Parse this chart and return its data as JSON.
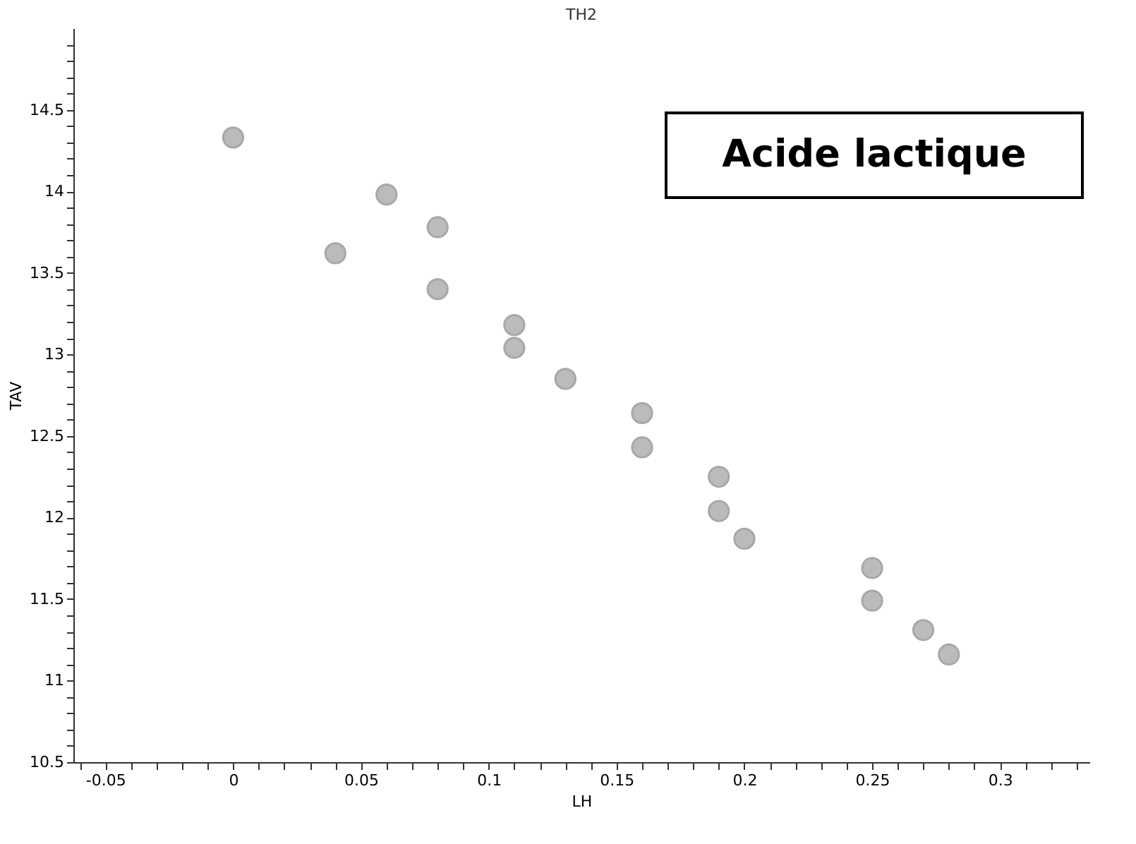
{
  "chart_data": {
    "type": "scatter",
    "title": "TH2",
    "xlabel": "LH",
    "ylabel": "TAV",
    "annotations": [
      "Acide lactique"
    ],
    "x": [
      0,
      0.04,
      0.06,
      0.08,
      0.08,
      0.11,
      0.11,
      0.13,
      0.16,
      0.16,
      0.19,
      0.19,
      0.2,
      0.25,
      0.25,
      0.27,
      0.28
    ],
    "series": [
      {
        "color": "#bbbbbb",
        "values": [
          14.33,
          13.62,
          13.98,
          13.78,
          13.4,
          13.18,
          13.04,
          12.85,
          12.64,
          12.43,
          12.25,
          12.04,
          11.87,
          11.69,
          11.49,
          11.31,
          11.16
        ]
      }
    ],
    "marker": "circle",
    "grid": false,
    "legend": false,
    "xlim": [
      -0.0625,
      0.335
    ],
    "ylim": [
      10.5,
      15
    ],
    "xticks": [
      {
        "value": -0.06,
        "label": null
      },
      -0.05,
      {
        "value": -0.04,
        "label": null
      },
      {
        "value": -0.03,
        "label": null
      },
      {
        "value": -0.02,
        "label": null
      },
      {
        "value": -0.01,
        "label": null
      },
      0,
      {
        "value": 0.01,
        "label": null
      },
      {
        "value": 0.02,
        "label": null
      },
      {
        "value": 0.03,
        "label": null
      },
      {
        "value": 0.04,
        "label": null
      },
      0.05,
      {
        "value": 0.06,
        "label": null
      },
      {
        "value": 0.07,
        "label": null
      },
      {
        "value": 0.08,
        "label": null
      },
      {
        "value": 0.09,
        "label": null
      },
      0.1,
      {
        "value": 0.11,
        "label": null
      },
      {
        "value": 0.12,
        "label": null
      },
      {
        "value": 0.13,
        "label": null
      },
      {
        "value": 0.14,
        "label": null
      },
      0.15,
      {
        "value": 0.16,
        "label": null
      },
      {
        "value": 0.17,
        "label": null
      },
      {
        "value": 0.18,
        "label": null
      },
      {
        "value": 0.19,
        "label": null
      },
      0.2,
      {
        "value": 0.21,
        "label": null
      },
      {
        "value": 0.22,
        "label": null
      },
      {
        "value": 0.23,
        "label": null
      },
      {
        "value": 0.24,
        "label": null
      },
      0.25,
      {
        "value": 0.26,
        "label": null
      },
      {
        "value": 0.27,
        "label": null
      },
      {
        "value": 0.28,
        "label": null
      },
      {
        "value": 0.29,
        "label": null
      },
      0.3,
      {
        "value": 0.31,
        "label": null
      },
      {
        "value": 0.32,
        "label": null
      },
      {
        "value": 0.33,
        "label": null
      }
    ],
    "yticks": [
      10.5,
      {
        "value": 10.6,
        "label": null
      },
      {
        "value": 10.7,
        "label": null
      },
      {
        "value": 10.8,
        "label": null
      },
      {
        "value": 10.9,
        "label": null
      },
      11,
      {
        "value": 11.1,
        "label": null
      },
      {
        "value": 11.2,
        "label": null
      },
      {
        "value": 11.3,
        "label": null
      },
      {
        "value": 11.4,
        "label": null
      },
      11.5,
      {
        "value": 11.6,
        "label": null
      },
      {
        "value": 11.7,
        "label": null
      },
      {
        "value": 11.8,
        "label": null
      },
      {
        "value": 11.9,
        "label": null
      },
      12,
      {
        "value": 12.1,
        "label": null
      },
      {
        "value": 12.2,
        "label": null
      },
      {
        "value": 12.3,
        "label": null
      },
      {
        "value": 12.4,
        "label": null
      },
      12.5,
      {
        "value": 12.6,
        "label": null
      },
      {
        "value": 12.7,
        "label": null
      },
      {
        "value": 12.8,
        "label": null
      },
      {
        "value": 12.9,
        "label": null
      },
      13,
      {
        "value": 13.1,
        "label": null
      },
      {
        "value": 13.2,
        "label": null
      },
      {
        "value": 13.3,
        "label": null
      },
      {
        "value": 13.4,
        "label": null
      },
      13.5,
      {
        "value": 13.6,
        "label": null
      },
      {
        "value": 13.7,
        "label": null
      },
      {
        "value": 13.8,
        "label": null
      },
      {
        "value": 13.9,
        "label": null
      },
      14,
      {
        "value": 14.1,
        "label": null
      },
      {
        "value": 14.2,
        "label": null
      },
      {
        "value": 14.3,
        "label": null
      },
      {
        "value": 14.4,
        "label": null
      },
      14.5,
      {
        "value": 14.6,
        "label": null
      },
      {
        "value": 14.7,
        "label": null
      },
      {
        "value": 14.8,
        "label": null
      },
      {
        "value": 14.9,
        "label": null
      }
    ]
  }
}
